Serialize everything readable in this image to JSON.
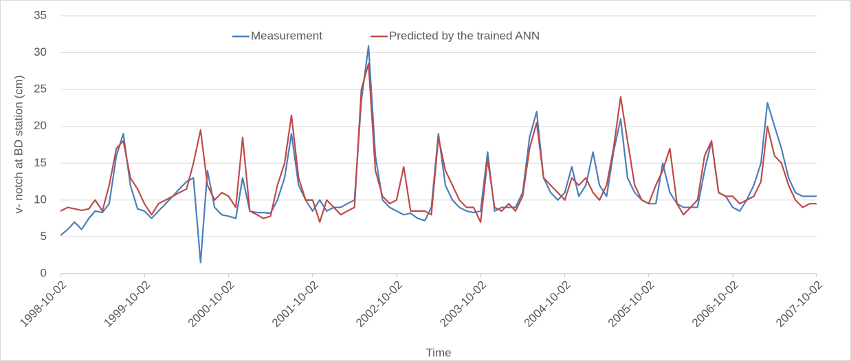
{
  "chart_data": {
    "type": "line",
    "y_label": "v- notch at BD station (cm)",
    "x_label": "Time",
    "xlim": [
      "1998-10-02",
      "2007-10-02"
    ],
    "xticks": [
      "1998-10-02",
      "1999-10-02",
      "2000-10-02",
      "2001-10-02",
      "2002-10-02",
      "2003-10-02",
      "2004-10-02",
      "2005-10-02",
      "2006-10-02",
      "2007-10-02"
    ],
    "ylim": [
      0,
      35
    ],
    "yticks": [
      0,
      5,
      10,
      15,
      20,
      25,
      30,
      35
    ],
    "grid": true,
    "legend": "top",
    "x": [
      "1998-10-02",
      "1998-11-02",
      "1998-12-02",
      "1999-01-02",
      "1999-02-02",
      "1999-03-02",
      "1999-04-02",
      "1999-05-02",
      "1999-06-02",
      "1999-07-02",
      "1999-08-02",
      "1999-09-02",
      "1999-10-02",
      "1999-11-02",
      "1999-12-02",
      "2000-01-02",
      "2000-02-02",
      "2000-03-02",
      "2000-04-02",
      "2000-05-02",
      "2000-06-02",
      "2000-07-02",
      "2000-08-02",
      "2000-09-02",
      "2000-10-02",
      "2000-11-02",
      "2000-12-02",
      "2001-01-02",
      "2001-02-02",
      "2001-03-02",
      "2001-04-02",
      "2001-05-02",
      "2001-06-02",
      "2001-07-02",
      "2001-08-02",
      "2001-09-02",
      "2001-10-02",
      "2001-11-02",
      "2001-12-02",
      "2002-01-02",
      "2002-02-02",
      "2002-03-02",
      "2002-04-02",
      "2002-05-02",
      "2002-06-02",
      "2002-07-02",
      "2002-08-02",
      "2002-09-02",
      "2002-10-02",
      "2002-11-02",
      "2002-12-02",
      "2003-01-02",
      "2003-02-02",
      "2003-03-02",
      "2003-04-02",
      "2003-05-02",
      "2003-06-02",
      "2003-07-02",
      "2003-08-02",
      "2003-09-02",
      "2003-10-02",
      "2003-11-02",
      "2003-12-02",
      "2004-01-02",
      "2004-02-02",
      "2004-03-02",
      "2004-04-02",
      "2004-05-02",
      "2004-06-02",
      "2004-07-02",
      "2004-08-02",
      "2004-09-02",
      "2004-10-02",
      "2004-11-02",
      "2004-12-02",
      "2005-01-02",
      "2005-02-02",
      "2005-03-02",
      "2005-04-02",
      "2005-05-02",
      "2005-06-02",
      "2005-07-02",
      "2005-08-02",
      "2005-09-02",
      "2005-10-02",
      "2005-11-02",
      "2005-12-02",
      "2006-01-02",
      "2006-02-02",
      "2006-03-02",
      "2006-04-02",
      "2006-05-02",
      "2006-06-02",
      "2006-07-02",
      "2006-08-02",
      "2006-09-02",
      "2006-10-02",
      "2006-11-02",
      "2006-12-02",
      "2007-01-02",
      "2007-02-02",
      "2007-03-02",
      "2007-04-02",
      "2007-05-02",
      "2007-06-02",
      "2007-07-02",
      "2007-08-02",
      "2007-09-02",
      "2007-10-02"
    ],
    "series": [
      {
        "name": "Measurement",
        "color": "#4a7ebb",
        "values": [
          5.2,
          6.0,
          7.0,
          6.0,
          7.5,
          8.5,
          8.3,
          9.5,
          16,
          19,
          12,
          8.8,
          8.5,
          7.5,
          8.5,
          9.5,
          10.5,
          11.5,
          12.5,
          13,
          1.5,
          14,
          9,
          8,
          7.8,
          7.5,
          13,
          8.5,
          8.3,
          8.3,
          8.2,
          10,
          13,
          19,
          12,
          10,
          8.5,
          10,
          8.5,
          9,
          9,
          9.5,
          10,
          23.5,
          30.9,
          16,
          10,
          9,
          8.5,
          8,
          8.2,
          7.5,
          7.2,
          9,
          19,
          12,
          10,
          9,
          8.5,
          8.3,
          8.5,
          16.5,
          8.5,
          9,
          9,
          9,
          11,
          18.5,
          22,
          13,
          11,
          10,
          11,
          14.5,
          10.5,
          12,
          16.5,
          12,
          10.5,
          16.5,
          21,
          13,
          11,
          10,
          9.5,
          9.5,
          15,
          11,
          9.5,
          9,
          9,
          9,
          14,
          18,
          11,
          10.5,
          9,
          8.5,
          10,
          12,
          15,
          23.2,
          20,
          17,
          13,
          11,
          10.5,
          10.5,
          10.5
        ]
      },
      {
        "name": "Predicted by the trained ANN",
        "color": "#be4b48",
        "values": [
          8.5,
          9,
          8.8,
          8.6,
          8.8,
          10,
          8.5,
          12,
          17,
          18,
          13,
          11.5,
          9.5,
          8,
          9.5,
          10,
          10.5,
          11,
          11.5,
          15,
          19.5,
          12,
          10,
          11,
          10.5,
          9,
          18.5,
          8.5,
          8,
          7.5,
          7.8,
          12,
          15,
          21.5,
          13,
          10,
          10,
          7,
          10,
          9,
          8,
          8.5,
          9,
          25,
          28.5,
          14,
          10.5,
          9.5,
          10,
          14.5,
          8.5,
          8.5,
          8.5,
          8,
          18.5,
          14,
          12,
          10,
          9,
          9,
          7,
          15.5,
          9,
          8.5,
          9.5,
          8.5,
          10.5,
          17,
          20.5,
          13,
          12,
          11,
          10,
          13,
          12,
          13,
          11,
          10,
          12,
          17,
          24,
          18,
          12,
          10,
          9.5,
          12,
          14,
          17,
          9.5,
          8,
          9,
          10,
          16,
          18,
          11,
          10.5,
          10.5,
          9.5,
          10,
          10.5,
          12.5,
          20,
          16,
          15,
          12,
          10,
          9,
          9.5,
          9.5
        ]
      }
    ]
  }
}
